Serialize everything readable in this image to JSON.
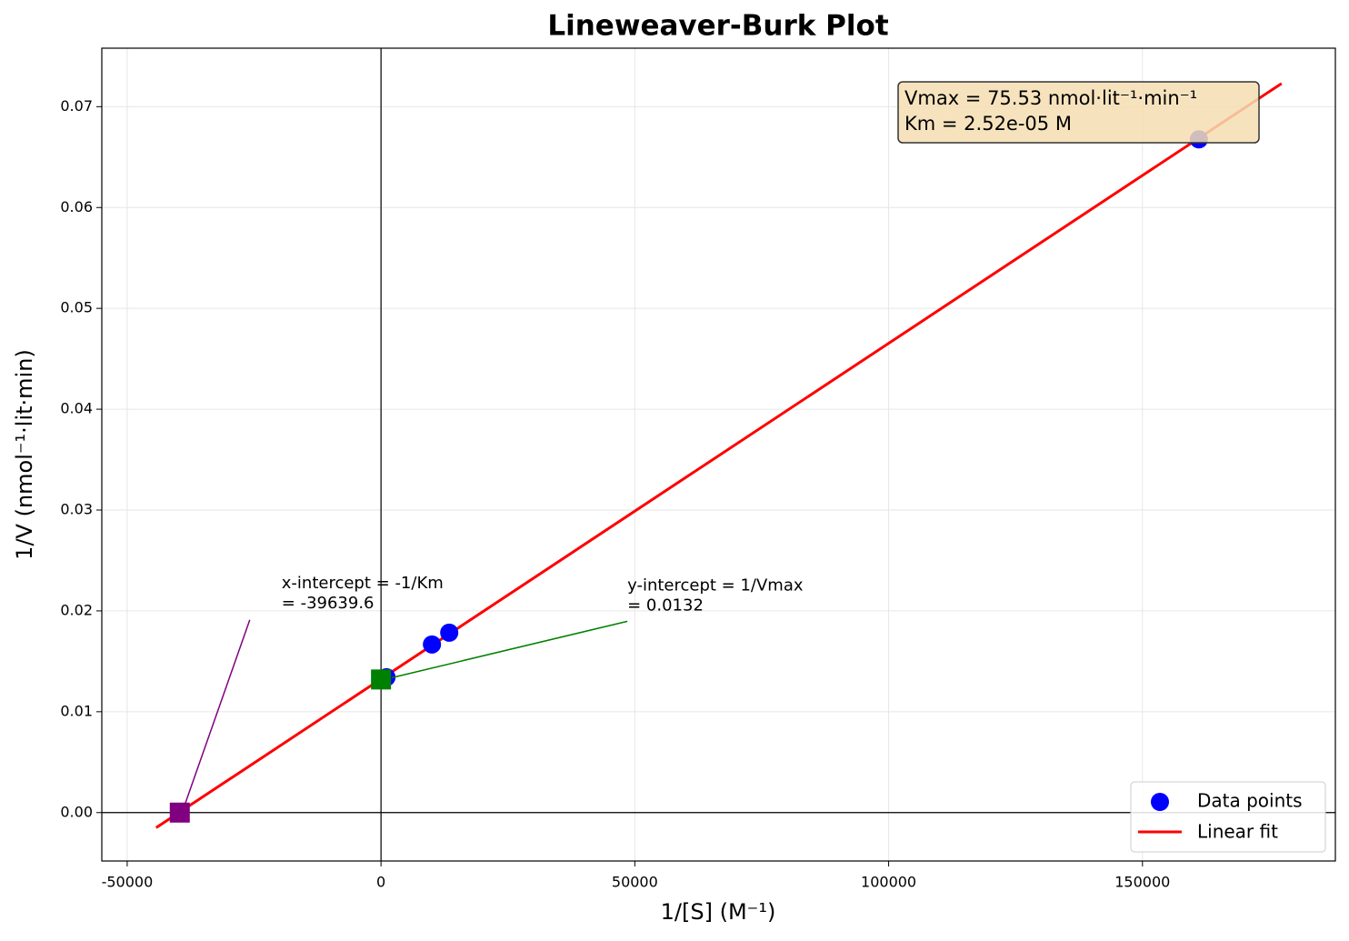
{
  "chart_data": {
    "type": "scatter",
    "title": "Lineweaver-Burk Plot",
    "x_label": "1/[S] (M⁻¹)",
    "y_label": "1/V (nmol⁻¹·lit·min)",
    "xlim": [
      -55000,
      188000
    ],
    "ylim": [
      -0.0048,
      0.0758
    ],
    "xticks": [
      -50000,
      0,
      50000,
      100000,
      150000
    ],
    "yticks": [
      {
        "value": 0,
        "label": "0.00"
      },
      0.01,
      0.02,
      0.03,
      0.04,
      0.05,
      0.06,
      0.07
    ],
    "grid": true,
    "legend": "lower right",
    "series": [
      {
        "name": "Data points",
        "type": "scatter",
        "color": "#0000ff",
        "x": [
          1075,
          10036,
          13441,
          161111
        ],
        "values": [
          0.01342,
          0.01667,
          0.01784,
          0.06676
        ]
      },
      {
        "name": "Linear fit",
        "type": "line",
        "color": "#ff0000",
        "x": [
          -44300,
          177400
        ],
        "values": [
          -0.0015,
          0.0723
        ]
      }
    ],
    "markers": [
      {
        "label": [
          "x-intercept = -1/Km",
          "= -39639.6"
        ],
        "color": "#800080",
        "x": -39639.6,
        "y": 0
      },
      {
        "label": [
          "y-intercept = 1/Vmax",
          "= 0.0132"
        ],
        "color": "#008000",
        "x": 0,
        "y": 0.0132
      }
    ],
    "textbox": [
      "Vmax = 75.53 nmol·lit⁻¹·min⁻¹",
      "Km = 2.52e-05 M"
    ]
  }
}
